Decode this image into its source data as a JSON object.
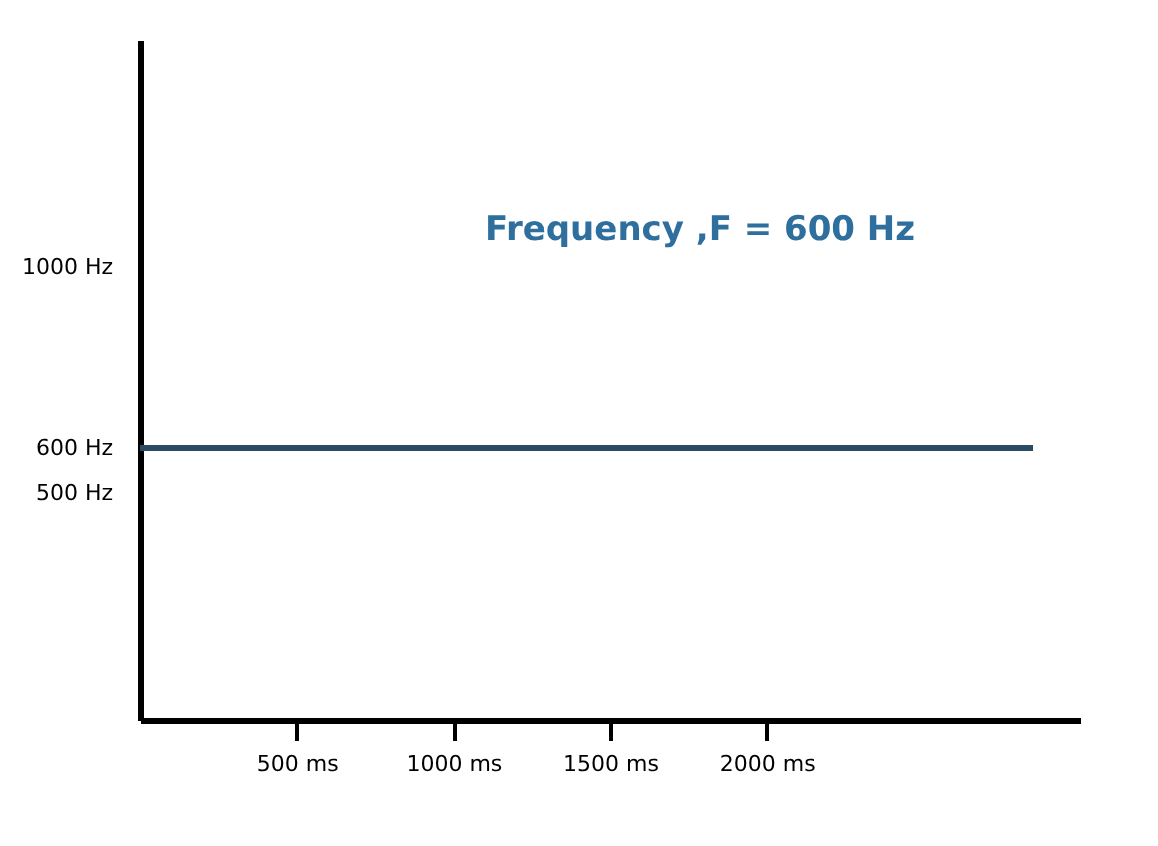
{
  "chart_data": {
    "type": "line",
    "annotations": [
      "Frequency ,F = 600 Hz"
    ],
    "series": [
      {
        "color": "#2b4a63",
        "x": [
          0,
          2850
        ],
        "values": [
          600,
          600
        ]
      }
    ],
    "xlim": [
      0,
      3000
    ],
    "xticks": [
      {
        "value": 500,
        "label": "500 ms"
      },
      {
        "value": 1000,
        "label": "1000 ms"
      },
      {
        "value": 1500,
        "label": "1500 ms"
      },
      {
        "value": 2000,
        "label": "2000 ms"
      }
    ],
    "ylim": [
      0,
      1500
    ],
    "yticks": [
      {
        "value": 500,
        "label": "500 Hz"
      },
      {
        "value": 600,
        "label": "600 Hz"
      },
      {
        "value": 1000,
        "label": "1000 Hz"
      }
    ],
    "grid": false,
    "marker": "none",
    "line_style": "solid"
  }
}
